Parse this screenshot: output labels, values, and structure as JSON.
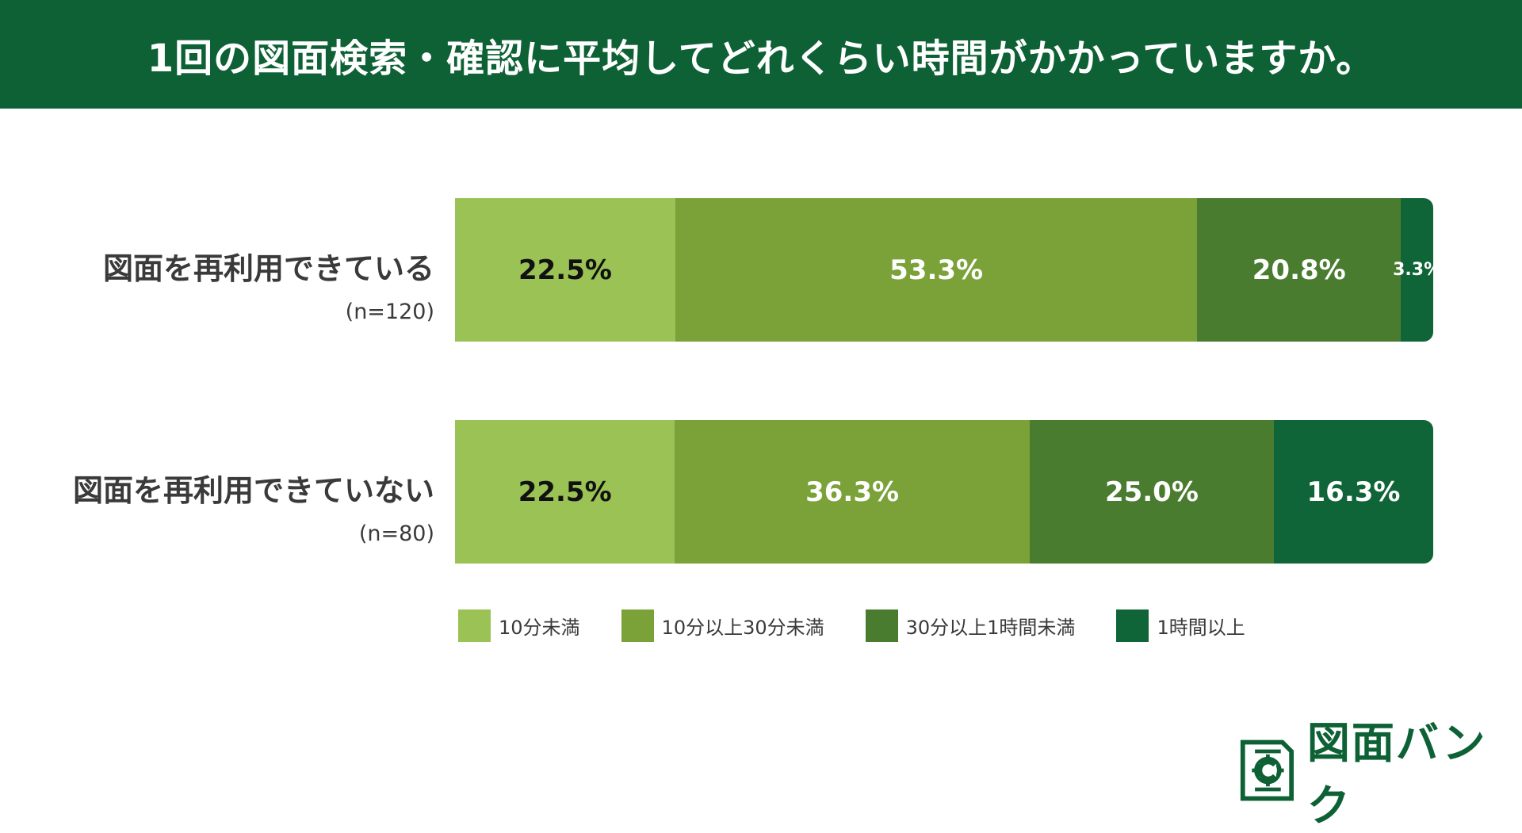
{
  "header": {
    "title": "1回の図面検索・確認に平均してどれくらい時間がかかっていますか。"
  },
  "colors": {
    "header": "#0d6135",
    "series": [
      "#9bc254",
      "#7ba239",
      "#4a7c30",
      "#0f6537"
    ]
  },
  "chart_data": {
    "type": "bar",
    "orientation": "horizontal-stacked-100",
    "title": "1回の図面検索・確認に平均してどれくらい時間がかかっていますか。",
    "categories": [
      {
        "label": "図面を再利用できている",
        "n": "(n=120)"
      },
      {
        "label": "図面を再利用できていない",
        "n": "(n=80)"
      }
    ],
    "series": [
      {
        "name": "10分未満",
        "values": [
          22.5,
          22.5
        ],
        "labels": [
          "22.5%",
          "22.5%"
        ]
      },
      {
        "name": "10分以上30分未満",
        "values": [
          53.3,
          36.3
        ],
        "labels": [
          "53.3%",
          "36.3%"
        ]
      },
      {
        "name": "30分以上1時間未満",
        "values": [
          20.8,
          25.0
        ],
        "labels": [
          "20.8%",
          "25.0%"
        ]
      },
      {
        "name": "1時間以上",
        "values": [
          3.3,
          16.3
        ],
        "labels": [
          "3.3%",
          "16.3%"
        ]
      }
    ],
    "legend_position": "bottom"
  },
  "logo": {
    "text": "図面バンク"
  }
}
